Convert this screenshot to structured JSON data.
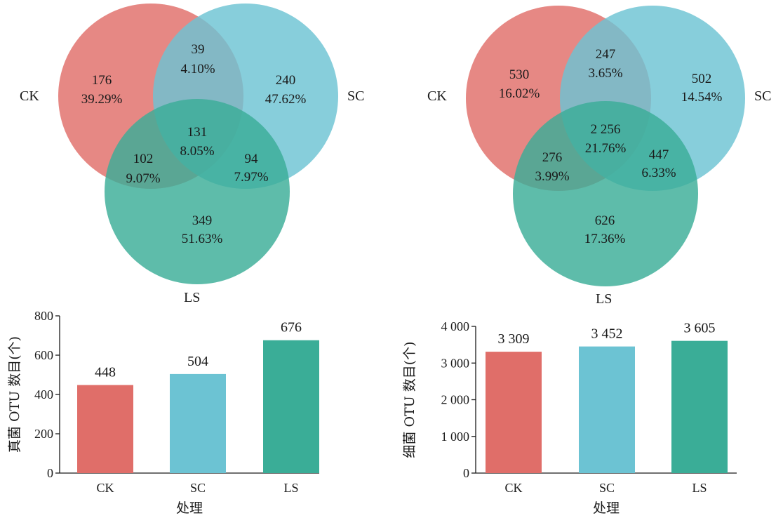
{
  "colors": {
    "CK": "#e06e69",
    "SC": "#6cc3d3",
    "LS": "#3aad97",
    "axis": "#1a1a1a"
  },
  "chart_data": [
    {
      "type": "venn",
      "sets": [
        "CK",
        "SC",
        "LS"
      ],
      "regions": [
        {
          "sets": [
            "CK"
          ],
          "count": "176",
          "pct": "39.29%"
        },
        {
          "sets": [
            "SC"
          ],
          "count": "240",
          "pct": "47.62%"
        },
        {
          "sets": [
            "LS"
          ],
          "count": "349",
          "pct": "51.63%"
        },
        {
          "sets": [
            "CK",
            "SC"
          ],
          "count": "39",
          "pct": "4.10%"
        },
        {
          "sets": [
            "CK",
            "LS"
          ],
          "count": "102",
          "pct": "9.07%"
        },
        {
          "sets": [
            "SC",
            "LS"
          ],
          "count": "94",
          "pct": "7.97%"
        },
        {
          "sets": [
            "CK",
            "SC",
            "LS"
          ],
          "count": "131",
          "pct": "8.05%"
        }
      ]
    },
    {
      "type": "venn",
      "sets": [
        "CK",
        "SC",
        "LS"
      ],
      "regions": [
        {
          "sets": [
            "CK"
          ],
          "count": "530",
          "pct": "16.02%"
        },
        {
          "sets": [
            "SC"
          ],
          "count": "502",
          "pct": "14.54%"
        },
        {
          "sets": [
            "LS"
          ],
          "count": "626",
          "pct": "17.36%"
        },
        {
          "sets": [
            "CK",
            "SC"
          ],
          "count": "247",
          "pct": "3.65%"
        },
        {
          "sets": [
            "CK",
            "LS"
          ],
          "count": "276",
          "pct": "3.99%"
        },
        {
          "sets": [
            "SC",
            "LS"
          ],
          "count": "447",
          "pct": "6.33%"
        },
        {
          "sets": [
            "CK",
            "SC",
            "LS"
          ],
          "count": "2 256",
          "pct": "21.76%"
        }
      ]
    },
    {
      "type": "bar",
      "categories": [
        "CK",
        "SC",
        "LS"
      ],
      "values": [
        448,
        504,
        676
      ],
      "value_labels": [
        "448",
        "504",
        "676"
      ],
      "ylim": [
        0,
        800
      ],
      "yticks": [
        0,
        200,
        400,
        600,
        800
      ],
      "ytick_labels": [
        "0",
        "200",
        "400",
        "600",
        "800"
      ],
      "xlabel": "处理",
      "ylabel": "真菌 OTU 数目(个)"
    },
    {
      "type": "bar",
      "categories": [
        "CK",
        "SC",
        "LS"
      ],
      "values": [
        3309,
        3452,
        3605
      ],
      "value_labels": [
        "3 309",
        "3 452",
        "3 605"
      ],
      "ylim": [
        0,
        4000
      ],
      "yticks": [
        0,
        1000,
        2000,
        3000,
        4000
      ],
      "ytick_labels": [
        "0",
        "1 000",
        "2 000",
        "3 000",
        "4 000"
      ],
      "xlabel": "处理",
      "ylabel": "细菌 OTU 数目(个)"
    }
  ]
}
